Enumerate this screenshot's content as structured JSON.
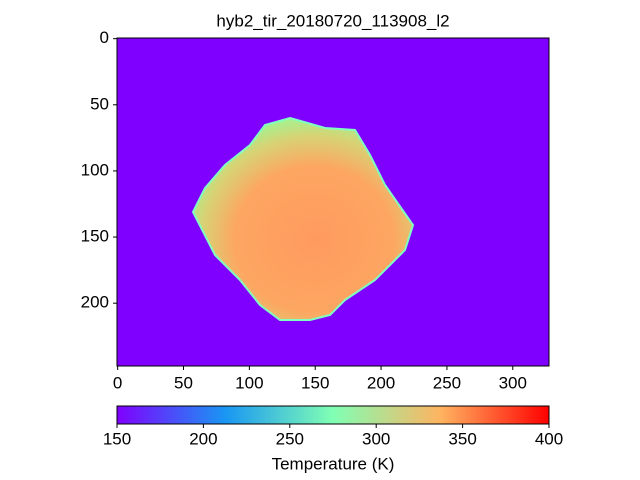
{
  "chart_data": {
    "type": "image",
    "title": "hyb2_tir_20180720_113908_l2",
    "xlim": [
      -0.5,
      327.5
    ],
    "xticks": [
      0,
      50,
      100,
      150,
      200,
      250,
      300
    ],
    "ylim": [
      247.5,
      -0.5
    ],
    "yticks": [
      0,
      50,
      100,
      150,
      200
    ],
    "colorbar": {
      "label": "Temperature (K)",
      "lim": [
        150,
        400
      ],
      "ticks": [
        150,
        200,
        250,
        300,
        350,
        400
      ],
      "cmap": "rainbow"
    }
  }
}
